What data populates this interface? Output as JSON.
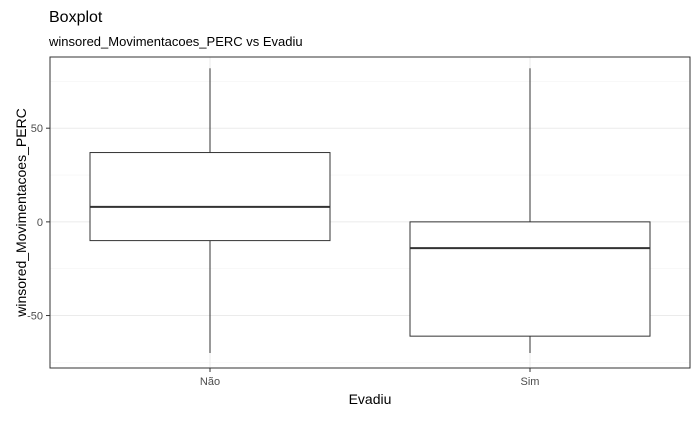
{
  "chart_data": {
    "type": "boxplot",
    "title": "Boxplot",
    "subtitle": "winsored_Movimentacoes_PERC vs Evadiu",
    "xlabel": "Evadiu",
    "ylabel": "winsored_Movimentacoes_PERC",
    "ylim": [
      -78,
      88
    ],
    "yticks": [
      -50,
      0,
      50
    ],
    "ytick_labels": [
      "-50",
      "0",
      "50"
    ],
    "yminor": [
      -75,
      -25,
      25,
      75
    ],
    "grid": true,
    "categories": [
      "Não",
      "Sim"
    ],
    "boxes": [
      {
        "category": "Não",
        "min": -70,
        "q1": -10,
        "median": 8,
        "q3": 37,
        "max": 82
      },
      {
        "category": "Sim",
        "min": -70,
        "q1": -61,
        "median": -14,
        "q3": 0,
        "max": 82
      }
    ],
    "colors": {
      "box_fill": "#ffffff",
      "box_stroke": "#333333",
      "grid": "#ebebeb"
    }
  }
}
